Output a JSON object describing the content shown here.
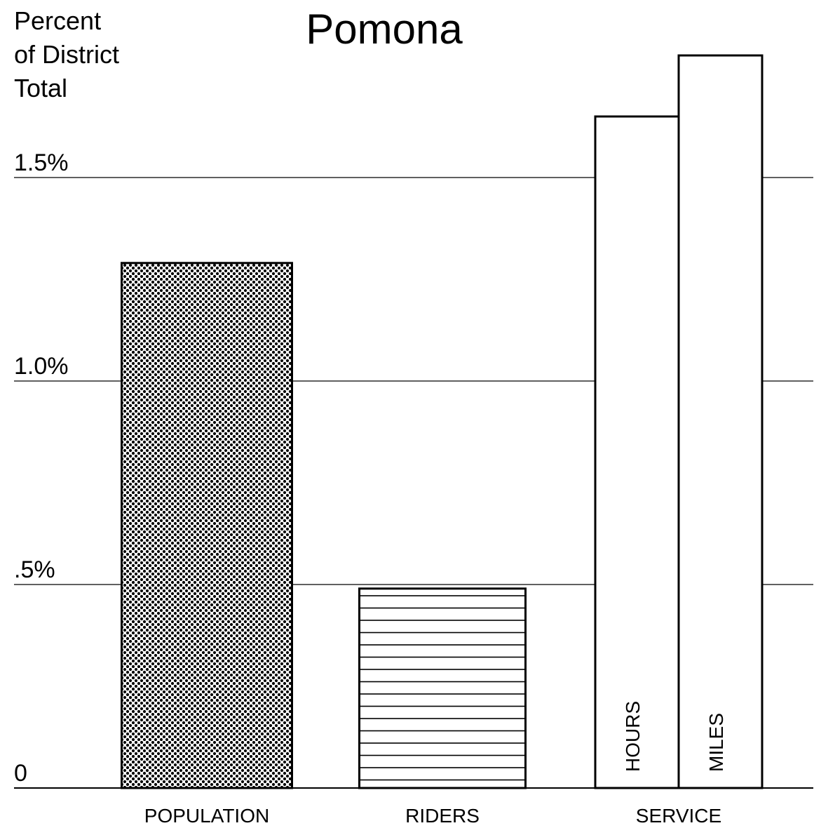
{
  "chart_data": {
    "type": "bar",
    "title": "Pomona",
    "ylabel": [
      "Percent",
      "of District",
      "Total"
    ],
    "ylim": [
      0,
      1.9
    ],
    "yticks": [
      0,
      {
        "value": 0.5,
        "label": ".5%"
      },
      {
        "value": 1,
        "label": "1.0%"
      },
      {
        "value": 1.5,
        "label": "1.5%"
      }
    ],
    "grid": true,
    "groups": [
      {
        "label": "POPULATION",
        "bars": [
          {
            "value": 1.29,
            "pattern": "dots"
          }
        ]
      },
      {
        "label": "RIDERS",
        "bars": [
          {
            "value": 0.49,
            "pattern": "lines"
          }
        ]
      },
      {
        "label": "SERVICE",
        "bars": [
          {
            "name": "HOURS",
            "value": 1.65,
            "pattern": "none"
          },
          {
            "name": "MILES",
            "value": 1.8,
            "pattern": "none"
          }
        ]
      }
    ]
  }
}
